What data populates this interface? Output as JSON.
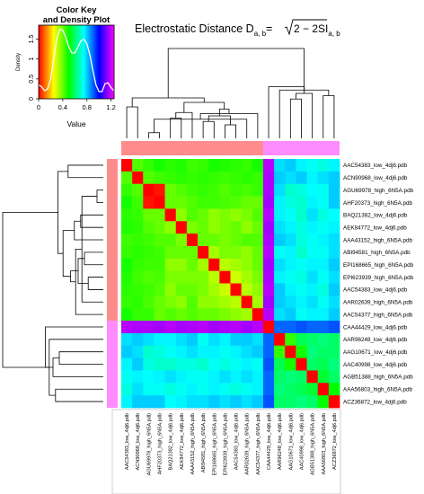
{
  "chart_data": {
    "type": "heatmap",
    "title_main": "Electrostatic Distance D",
    "title_sub": "a, b",
    "title_eq": "=",
    "title_root": "2 − 2SI",
    "title_root_sub": "a, b",
    "key": {
      "title_line1": "Color Key",
      "title_line2": "and Density Plot",
      "xlabel": "Value",
      "ylabel": "Density",
      "x_ticks": [
        "0",
        "0.4",
        "0.8",
        "1.2"
      ],
      "x_tick_values": [
        0,
        0.4,
        0.8,
        1.2
      ],
      "y_ticks": [
        "0",
        "0.5",
        "1",
        "1.5"
      ],
      "y_tick_values": [
        0,
        0.5,
        1,
        1.5
      ],
      "xlim": [
        0,
        1.25
      ],
      "ylim": [
        0,
        1.85
      ],
      "density_x": [
        0.0,
        0.05,
        0.1,
        0.15,
        0.2,
        0.25,
        0.3,
        0.35,
        0.4,
        0.45,
        0.5,
        0.55,
        0.6,
        0.65,
        0.7,
        0.75,
        0.8,
        0.85,
        0.9,
        0.95,
        1.0,
        1.05,
        1.1,
        1.15,
        1.2,
        1.25
      ],
      "density_y": [
        0.35,
        0.3,
        0.2,
        0.25,
        0.5,
        1.0,
        1.5,
        1.75,
        1.72,
        1.55,
        1.3,
        1.15,
        1.15,
        1.3,
        1.45,
        1.5,
        1.38,
        1.1,
        0.7,
        0.35,
        0.18,
        0.18,
        0.38,
        0.4,
        0.28,
        0.2
      ]
    },
    "labels": [
      "AAC54383_low_4dj6.pdb",
      "ACN90968_low_4dj6.pdb",
      "AGU69978_high_6N5A.pdb",
      "AHF20373_high_6N5A.pdb",
      "BAQ21382_low_4dj6.pdb",
      "AEK84772_low_4dj6.pdb",
      "AAA43152_high_6N5A.pdb",
      "ABI94581_high_6N5A.pdb",
      "EPI168665_high_6N5A.pdb",
      "EPI623939_high_6N5A.pdb",
      "AAC54383_low_4dj6.pdb",
      "AAR02639_high_6N5A.pdb",
      "AAC54377_high_6N5A.pdb",
      "CAA44429_low_4dj6.pdb",
      "AAR96248_low_4dj6.pdb",
      "AAG10671_low_4dj6.pdb",
      "AAC40998_low_4dj6.pdb",
      "AGB51388_high_6N5A.pdb",
      "AAA56803_high_6N5A.pdb",
      "ACZ36872_low_4dj6.pdb"
    ],
    "cluster_colors": [
      "#ff8c8c",
      "#ff8c8c",
      "#ff8c8c",
      "#ff8c8c",
      "#ff8c8c",
      "#ff8c8c",
      "#ff8c8c",
      "#ff8c8c",
      "#ff8c8c",
      "#ff8c8c",
      "#ff8c8c",
      "#ff8c8c",
      "#ff8c8c",
      "#ff8cff",
      "#ff8cff",
      "#ff8cff",
      "#ff8cff",
      "#ff8cff",
      "#ff8cff",
      "#ff8cff"
    ],
    "clusters": [
      [
        0,
        12
      ],
      [
        13,
        19
      ]
    ],
    "value_range": [
      0,
      1.25
    ],
    "values": [
      [
        0.0,
        0.42,
        0.45,
        0.48,
        0.46,
        0.47,
        0.44,
        0.45,
        0.48,
        0.47,
        0.46,
        0.45,
        0.48,
        1.18,
        0.78,
        0.8,
        0.76,
        0.74,
        0.72,
        0.76
      ],
      [
        0.42,
        0.0,
        0.42,
        0.44,
        0.45,
        0.46,
        0.45,
        0.46,
        0.45,
        0.44,
        0.45,
        0.46,
        0.45,
        1.17,
        0.8,
        0.78,
        0.8,
        0.76,
        0.78,
        0.8
      ],
      [
        0.45,
        0.42,
        0.0,
        0.02,
        0.4,
        0.42,
        0.44,
        0.45,
        0.44,
        0.42,
        0.44,
        0.43,
        0.45,
        1.17,
        0.78,
        0.7,
        0.72,
        0.75,
        0.74,
        0.8
      ],
      [
        0.48,
        0.44,
        0.02,
        0.0,
        0.4,
        0.4,
        0.42,
        0.44,
        0.44,
        0.43,
        0.42,
        0.4,
        0.4,
        1.16,
        0.76,
        0.72,
        0.7,
        0.76,
        0.74,
        0.8
      ],
      [
        0.46,
        0.45,
        0.4,
        0.4,
        0.0,
        0.36,
        0.42,
        0.4,
        0.36,
        0.38,
        0.36,
        0.38,
        0.42,
        1.18,
        0.76,
        0.74,
        0.7,
        0.78,
        0.72,
        0.75
      ],
      [
        0.47,
        0.46,
        0.42,
        0.4,
        0.36,
        0.0,
        0.38,
        0.4,
        0.36,
        0.38,
        0.4,
        0.36,
        0.4,
        1.16,
        0.78,
        0.76,
        0.72,
        0.76,
        0.74,
        0.76
      ],
      [
        0.44,
        0.45,
        0.44,
        0.42,
        0.42,
        0.38,
        0.0,
        0.4,
        0.4,
        0.38,
        0.4,
        0.42,
        0.42,
        1.17,
        0.8,
        0.78,
        0.72,
        0.74,
        0.76,
        0.78
      ],
      [
        0.45,
        0.46,
        0.45,
        0.44,
        0.4,
        0.4,
        0.4,
        0.0,
        0.34,
        0.38,
        0.38,
        0.36,
        0.4,
        1.18,
        0.74,
        0.76,
        0.7,
        0.74,
        0.74,
        0.78
      ],
      [
        0.48,
        0.45,
        0.44,
        0.44,
        0.36,
        0.36,
        0.4,
        0.34,
        0.0,
        0.32,
        0.34,
        0.36,
        0.4,
        1.16,
        0.78,
        0.76,
        0.74,
        0.76,
        0.76,
        0.8
      ],
      [
        0.47,
        0.44,
        0.42,
        0.43,
        0.38,
        0.38,
        0.38,
        0.38,
        0.32,
        0.0,
        0.3,
        0.34,
        0.38,
        1.17,
        0.76,
        0.74,
        0.72,
        0.78,
        0.74,
        0.78
      ],
      [
        0.46,
        0.45,
        0.44,
        0.42,
        0.36,
        0.4,
        0.4,
        0.38,
        0.34,
        0.3,
        0.0,
        0.32,
        0.36,
        1.18,
        0.8,
        0.76,
        0.74,
        0.76,
        0.72,
        0.8
      ],
      [
        0.45,
        0.46,
        0.43,
        0.4,
        0.38,
        0.36,
        0.42,
        0.36,
        0.36,
        0.34,
        0.32,
        0.0,
        0.34,
        1.16,
        0.8,
        0.78,
        0.76,
        0.78,
        0.74,
        0.78
      ],
      [
        0.48,
        0.45,
        0.45,
        0.4,
        0.42,
        0.4,
        0.42,
        0.4,
        0.4,
        0.38,
        0.36,
        0.34,
        0.0,
        1.18,
        0.78,
        0.8,
        0.74,
        0.76,
        0.76,
        0.8
      ],
      [
        1.18,
        1.17,
        1.17,
        1.16,
        1.18,
        1.16,
        1.17,
        1.18,
        1.16,
        1.17,
        1.18,
        1.16,
        1.18,
        0.0,
        0.9,
        0.9,
        0.92,
        0.9,
        0.9,
        0.92
      ],
      [
        0.78,
        0.8,
        0.78,
        0.76,
        0.76,
        0.78,
        0.8,
        0.74,
        0.78,
        0.76,
        0.8,
        0.8,
        0.78,
        0.9,
        0.0,
        0.45,
        0.58,
        0.6,
        0.62,
        0.6
      ],
      [
        0.8,
        0.78,
        0.7,
        0.72,
        0.74,
        0.76,
        0.78,
        0.76,
        0.76,
        0.74,
        0.76,
        0.78,
        0.8,
        0.9,
        0.45,
        0.0,
        0.48,
        0.62,
        0.6,
        0.6
      ],
      [
        0.76,
        0.8,
        0.72,
        0.7,
        0.7,
        0.72,
        0.72,
        0.7,
        0.74,
        0.72,
        0.74,
        0.76,
        0.74,
        0.92,
        0.58,
        0.48,
        0.0,
        0.6,
        0.58,
        0.62
      ],
      [
        0.74,
        0.76,
        0.75,
        0.76,
        0.78,
        0.76,
        0.74,
        0.74,
        0.76,
        0.78,
        0.76,
        0.78,
        0.76,
        0.9,
        0.6,
        0.62,
        0.6,
        0.0,
        0.55,
        0.6
      ],
      [
        0.72,
        0.78,
        0.74,
        0.74,
        0.72,
        0.74,
        0.76,
        0.74,
        0.76,
        0.74,
        0.72,
        0.74,
        0.76,
        0.9,
        0.62,
        0.6,
        0.58,
        0.55,
        0.0,
        0.5
      ],
      [
        0.76,
        0.8,
        0.8,
        0.8,
        0.75,
        0.76,
        0.78,
        0.78,
        0.8,
        0.78,
        0.8,
        0.78,
        0.8,
        0.92,
        0.6,
        0.6,
        0.62,
        0.6,
        0.5,
        0.0
      ]
    ],
    "row_dendrogram": [
      [
        2,
        3,
        0.05
      ],
      [
        9,
        10,
        0.12
      ],
      [
        7,
        8,
        0.15
      ],
      [
        20,
        11,
        0.17
      ],
      [
        4,
        5,
        0.18
      ],
      [
        22,
        21,
        0.2
      ],
      [
        23,
        12,
        0.22
      ],
      [
        24,
        6,
        0.23
      ],
      [
        26,
        25,
        0.26
      ],
      [
        0,
        1,
        0.28
      ],
      [
        28,
        27,
        0.32
      ],
      [
        15,
        16,
        0.35
      ],
      [
        29,
        30,
        0.36
      ],
      [
        18,
        19,
        0.38
      ],
      [
        31,
        17,
        0.4
      ],
      [
        33,
        14,
        0.43
      ],
      [
        34,
        13,
        0.46
      ],
      [
        32,
        35,
        0.8
      ]
    ]
  }
}
